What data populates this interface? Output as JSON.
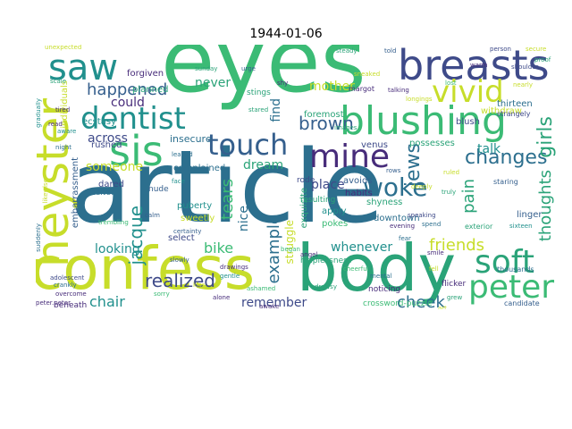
{
  "title": "1944-01-06",
  "colors": {
    "teal_dark": "#2c6f8e",
    "green": "#3bbb75",
    "green_mid": "#2aa378",
    "lime": "#c7dd2a",
    "purple": "#472c7a",
    "blue": "#355f8d",
    "teal": "#21908d",
    "navy": "#3e4a89"
  },
  "words": {
    "article": "article",
    "eyes": "eyes",
    "confess": "confess",
    "body": "body",
    "heyster": "heyster",
    "breasts": "breasts",
    "blushing": "blushing",
    "vivid": "vivid",
    "sis": "sis",
    "touch": "touch",
    "mine": "mine",
    "saw": "saw",
    "dentist": "dentist",
    "peter": "peter",
    "soft": "soft",
    "woke": "woke",
    "changes": "changes",
    "happened": "happened",
    "brown": "brown",
    "jews": "jews",
    "girls": "girls",
    "jacque": "jacque",
    "tears": "tears",
    "friends": "friends",
    "pain": "pain",
    "thoughts": "thoughts",
    "example": "example",
    "realized": "realized",
    "cheek": "cheek",
    "remember": "remember",
    "chair": "chair",
    "never": "never",
    "mother": "mother",
    "could": "could",
    "across": "across",
    "someone": "someone",
    "looking": "looking",
    "bike": "bike",
    "nice": "nice",
    "find": "find",
    "dream": "dream",
    "place": "place",
    "whenever": "whenever",
    "talk": "talk",
    "struggle": "struggle",
    "insecure": "insecure",
    "complained": "complained",
    "woken": "woken",
    "foremost": "foremost",
    "exquisite": "exquisite",
    "individuals": "individuals",
    "embarrassment": "embarrassment",
    "ecstasy": "ecstasy",
    "rushed": "rushed",
    "puberty": "puberty",
    "sweetly": "sweetly",
    "downtown": "downtown",
    "thirteen": "thirteen",
    "linger": "linger",
    "forgiven": "forgiven",
    "planned": "planned",
    "withdraw": "withdraw",
    "blush": "blush",
    "venus": "venus",
    "possesses": "possesses",
    "apply": "apply",
    "pokes": "pokes",
    "avoids": "avoids",
    "habits": "habits",
    "shyness": "shyness",
    "select": "select",
    "dared": "dared",
    "melted": "melted",
    "nude": "nude",
    "rode": "rode",
    "stings": "stings",
    "resulting": "resulting",
    "beneath": "beneath",
    "flicker": "flicker",
    "helplessness": "helplessness",
    "noticing": "noticing",
    "crossword_puzzle": "crossword-puzzle",
    "thousands": "thousands",
    "candidate": "candidate",
    "margot": "margot",
    "strangely": "strangely",
    "staring": "staring",
    "exterior": "exterior",
    "overcome": "overcome",
    "sunday": "sunday",
    "certainty": "certainty",
    "peter_peter": "peter.peter",
    "adolescent": "adolescent",
    "ashamed": "ashamed",
    "secure": "secure",
    "person": "person",
    "trembling": "trembling",
    "sneaked": "sneaked",
    "leaned": "leaned",
    "proof": "proof",
    "ruled": "ruled",
    "stared": "stared",
    "evening": "evening",
    "rows": "rows",
    "crankly": "crankly",
    "spend": "spend",
    "aware": "aware",
    "cheerful": "cheerful",
    "fell": "fell",
    "gentle": "gentle",
    "tired": "tired",
    "grew": "grew",
    "longings": "longings",
    "slowly": "slowly",
    "talking": "talking",
    "began": "began",
    "shy": "shy",
    "images": "images",
    "angel": "angel",
    "drowsy": "drowsy",
    "lost": "lost",
    "drawings": "drawings",
    "nearly": "nearly",
    "told": "told",
    "fear": "fear",
    "smile": "smile",
    "truly": "truly",
    "kiss": "kiss",
    "urge": "urge",
    "night": "night",
    "sorry": "sorry",
    "shoulder": "shoulder",
    "face": "face",
    "unexpected": "unexpected",
    "read": "read",
    "speaking": "speaking",
    "awake": "awake",
    "deeply": "deeply",
    "steady": "steady",
    "calm": "calm",
    "art": "art",
    "warm": "warm",
    "sixteen": "sixteen",
    "alone": "alone",
    "scale": "scale",
    "suddenly": "suddenly",
    "likewise": "likewise",
    "gradually": "gradually",
    "mental": "mental"
  }
}
